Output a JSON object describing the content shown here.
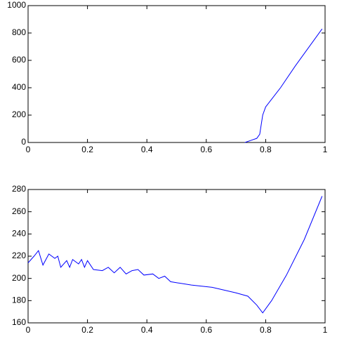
{
  "chart_data": [
    {
      "type": "line",
      "x": [
        0.73,
        0.75,
        0.77,
        0.78,
        0.79,
        0.8,
        0.85,
        0.9,
        0.95,
        0.99
      ],
      "values": [
        0,
        15,
        30,
        60,
        200,
        260,
        400,
        560,
        710,
        830
      ],
      "color": "#0000ff",
      "xlim": [
        0,
        1
      ],
      "xticks": [
        0,
        0.2,
        0.4,
        0.6,
        0.8,
        1
      ],
      "ylim": [
        0,
        1000
      ],
      "yticks": [
        0,
        200,
        400,
        600,
        800,
        1000
      ]
    },
    {
      "type": "line",
      "x": [
        0,
        0.02,
        0.035,
        0.05,
        0.07,
        0.09,
        0.1,
        0.11,
        0.13,
        0.14,
        0.15,
        0.17,
        0.18,
        0.19,
        0.2,
        0.22,
        0.25,
        0.27,
        0.29,
        0.31,
        0.33,
        0.35,
        0.37,
        0.39,
        0.42,
        0.44,
        0.46,
        0.48,
        0.55,
        0.62,
        0.7,
        0.74,
        0.77,
        0.79,
        0.82,
        0.87,
        0.93,
        0.99
      ],
      "values": [
        214,
        220,
        225,
        212,
        222,
        218,
        220,
        210,
        216,
        210,
        217,
        213,
        217,
        210,
        216,
        208,
        207,
        210,
        205,
        210,
        204,
        207,
        208,
        203,
        204,
        200,
        202,
        197,
        194,
        192,
        187,
        184,
        176,
        169,
        180,
        203,
        235,
        274
      ],
      "color": "#0000ff",
      "xlim": [
        0,
        1
      ],
      "xticks": [
        0,
        0.2,
        0.4,
        0.6,
        0.8,
        1
      ],
      "ylim": [
        160,
        280
      ],
      "yticks": [
        160,
        180,
        200,
        220,
        240,
        260,
        280
      ]
    }
  ]
}
